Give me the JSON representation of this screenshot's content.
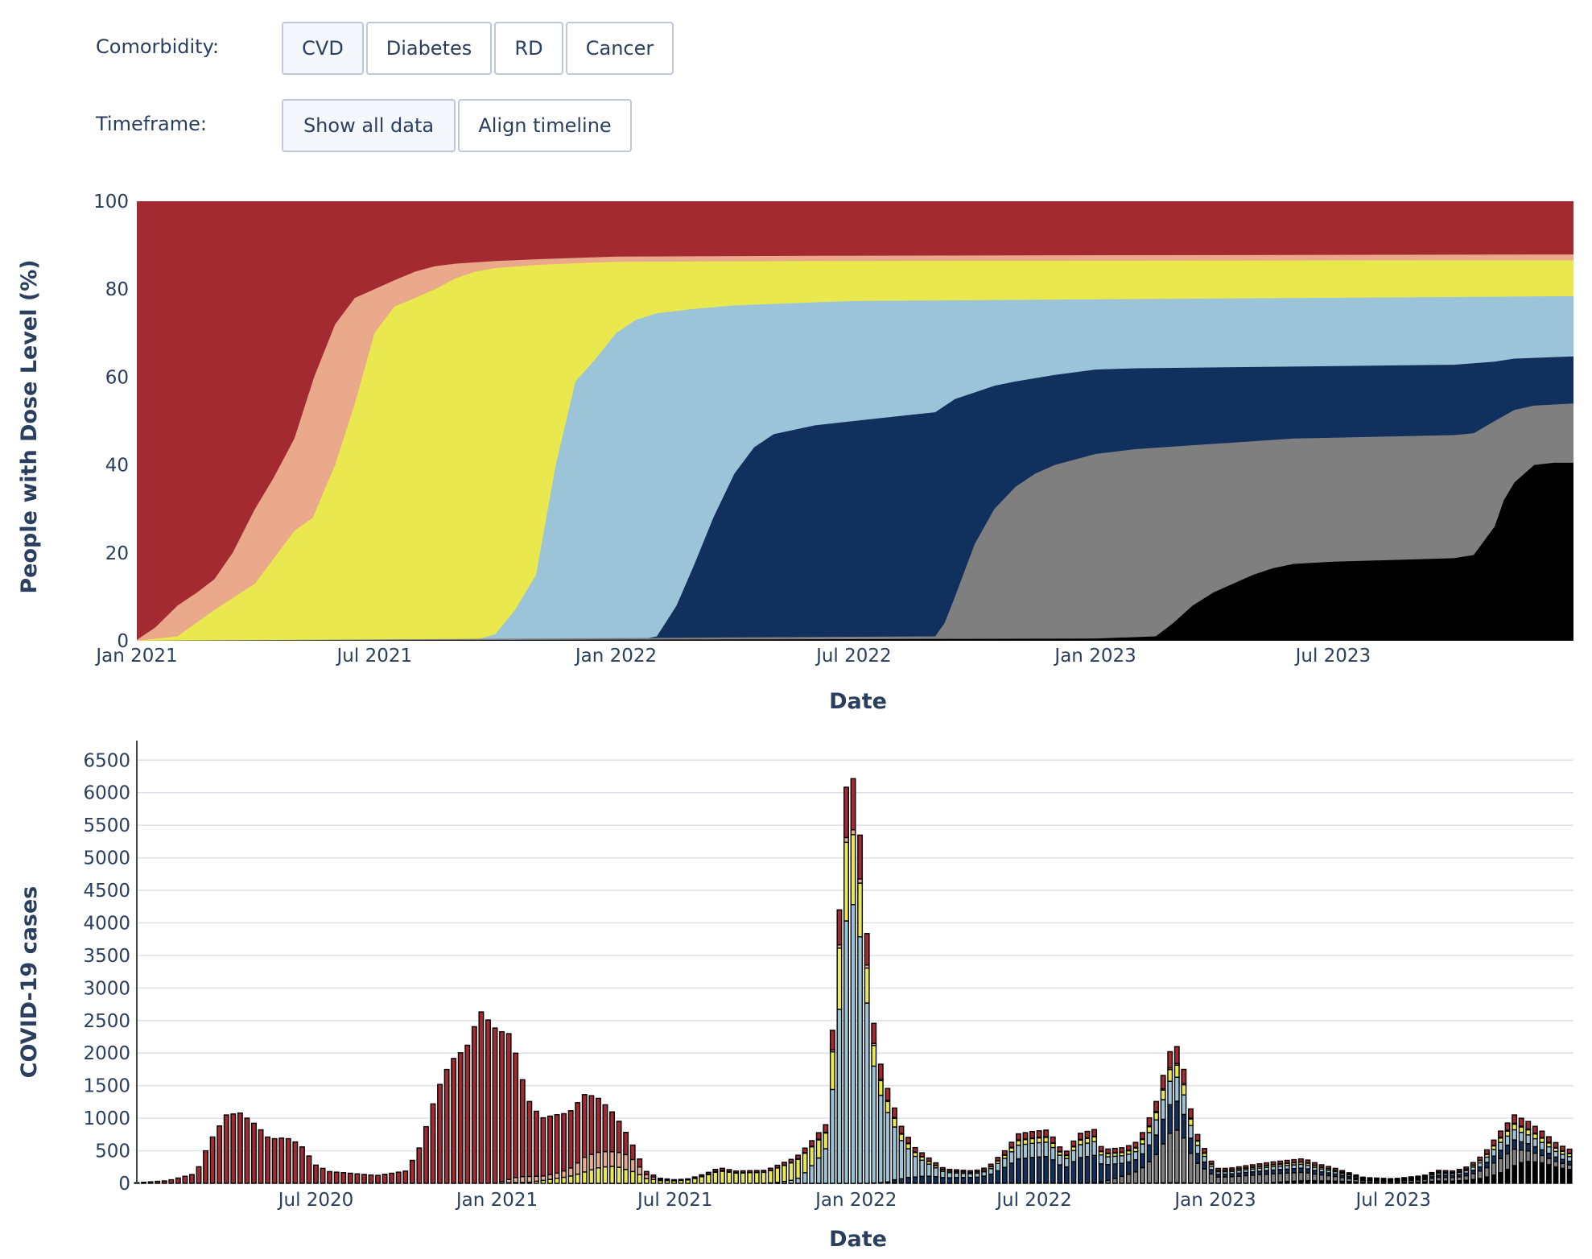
{
  "controls": {
    "comorbidity_label": "Comorbidity:",
    "comorbidity_buttons": [
      {
        "label": "CVD",
        "active": true
      },
      {
        "label": "Diabetes",
        "active": false
      },
      {
        "label": "RD",
        "active": false
      },
      {
        "label": "Cancer",
        "active": false
      }
    ],
    "timeframe_label": "Timeframe:",
    "timeframe_buttons": [
      {
        "label": "Show all data",
        "active": true
      },
      {
        "label": "Align timeline",
        "active": false
      }
    ]
  },
  "chart_data": [
    {
      "type": "area",
      "stacked": true,
      "xlabel": "Date",
      "ylabel": "People with Dose Level (%)",
      "x_range": [
        "2021-01-01",
        "2023-12-31"
      ],
      "ylim": [
        0,
        100
      ],
      "y_ticks": [
        0,
        20,
        40,
        60,
        80,
        100
      ],
      "x_ticks": [
        {
          "date": "2021-01-01",
          "label": "Jan 2021"
        },
        {
          "date": "2021-07-01",
          "label": "Jul 2021"
        },
        {
          "date": "2022-01-01",
          "label": "Jan 2022"
        },
        {
          "date": "2022-07-01",
          "label": "Jul 2022"
        },
        {
          "date": "2023-01-01",
          "label": "Jan 2023"
        },
        {
          "date": "2023-07-01",
          "label": "Jul 2023"
        }
      ],
      "grid": false,
      "boundaries": [
        {
          "color": "#a32a31",
          "points": [
            [
              "2021-01-01",
              100
            ],
            [
              "2023-12-31",
              100
            ]
          ]
        },
        {
          "color": "#eaa98b",
          "points": [
            [
              "2021-01-01",
              0.2
            ],
            [
              "2021-01-15",
              3
            ],
            [
              "2021-02-01",
              8
            ],
            [
              "2021-02-16",
              11
            ],
            [
              "2021-03-01",
              14
            ],
            [
              "2021-03-15",
              20
            ],
            [
              "2021-04-01",
              30
            ],
            [
              "2021-04-15",
              37
            ],
            [
              "2021-05-01",
              46
            ],
            [
              "2021-05-16",
              60
            ],
            [
              "2021-06-01",
              72
            ],
            [
              "2021-06-16",
              78
            ],
            [
              "2021-07-01",
              80
            ],
            [
              "2021-07-16",
              82
            ],
            [
              "2021-08-01",
              84
            ],
            [
              "2021-08-16",
              85.2
            ],
            [
              "2021-09-01",
              85.8
            ],
            [
              "2021-10-01",
              86.4
            ],
            [
              "2021-11-01",
              86.8
            ],
            [
              "2021-12-01",
              87.1
            ],
            [
              "2022-01-01",
              87.4
            ],
            [
              "2022-06-01",
              87.6
            ],
            [
              "2023-12-31",
              87.9
            ]
          ]
        },
        {
          "color": "#eae84f",
          "points": [
            [
              "2021-01-01",
              0
            ],
            [
              "2021-02-01",
              1
            ],
            [
              "2021-03-01",
              7
            ],
            [
              "2021-04-01",
              13
            ],
            [
              "2021-05-01",
              25
            ],
            [
              "2021-05-15",
              28
            ],
            [
              "2021-06-01",
              40
            ],
            [
              "2021-06-16",
              54
            ],
            [
              "2021-07-01",
              70
            ],
            [
              "2021-07-16",
              76
            ],
            [
              "2021-08-01",
              78
            ],
            [
              "2021-08-16",
              80
            ],
            [
              "2021-09-01",
              82.5
            ],
            [
              "2021-09-16",
              84
            ],
            [
              "2021-10-01",
              84.8
            ],
            [
              "2021-11-01",
              85.5
            ],
            [
              "2021-12-01",
              85.9
            ],
            [
              "2022-01-01",
              86.2
            ],
            [
              "2022-06-01",
              86.4
            ],
            [
              "2023-12-31",
              86.6
            ]
          ]
        },
        {
          "color": "#9cc4d9",
          "points": [
            [
              "2021-01-01",
              0
            ],
            [
              "2021-09-15",
              0
            ],
            [
              "2021-10-01",
              1.5
            ],
            [
              "2021-10-16",
              7
            ],
            [
              "2021-11-01",
              15
            ],
            [
              "2021-11-16",
              40
            ],
            [
              "2021-12-01",
              59
            ],
            [
              "2021-12-16",
              64
            ],
            [
              "2022-01-01",
              70
            ],
            [
              "2022-01-16",
              73
            ],
            [
              "2022-02-01",
              74.5
            ],
            [
              "2022-03-01",
              75.5
            ],
            [
              "2022-04-01",
              76.3
            ],
            [
              "2022-06-01",
              77
            ],
            [
              "2022-07-01",
              77.3
            ],
            [
              "2023-12-31",
              78.4
            ]
          ]
        },
        {
          "color": "#12305e",
          "points": [
            [
              "2021-01-01",
              0
            ],
            [
              "2022-01-15",
              0
            ],
            [
              "2022-02-01",
              1
            ],
            [
              "2022-02-16",
              8
            ],
            [
              "2022-03-01",
              17
            ],
            [
              "2022-03-16",
              28
            ],
            [
              "2022-04-01",
              38
            ],
            [
              "2022-04-16",
              44
            ],
            [
              "2022-05-01",
              47
            ],
            [
              "2022-06-01",
              49
            ],
            [
              "2022-07-01",
              50
            ],
            [
              "2022-08-01",
              51
            ],
            [
              "2022-09-01",
              52
            ],
            [
              "2022-09-16",
              55
            ],
            [
              "2022-10-01",
              56.5
            ],
            [
              "2022-10-16",
              58
            ],
            [
              "2022-11-01",
              59
            ],
            [
              "2022-12-01",
              60.5
            ],
            [
              "2023-01-01",
              61.7
            ],
            [
              "2023-02-01",
              62
            ],
            [
              "2023-10-01",
              62.8
            ],
            [
              "2023-11-01",
              63.5
            ],
            [
              "2023-11-16",
              64.2
            ],
            [
              "2023-12-31",
              64.7
            ]
          ]
        },
        {
          "color": "#7f7f7f",
          "points": [
            [
              "2021-01-01",
              0
            ],
            [
              "2022-09-01",
              1
            ],
            [
              "2022-09-08",
              4
            ],
            [
              "2022-09-16",
              10
            ],
            [
              "2022-10-01",
              22
            ],
            [
              "2022-10-16",
              30
            ],
            [
              "2022-11-01",
              35
            ],
            [
              "2022-11-16",
              38
            ],
            [
              "2022-12-01",
              40
            ],
            [
              "2023-01-01",
              42.5
            ],
            [
              "2023-02-01",
              43.6
            ],
            [
              "2023-04-01",
              44.8
            ],
            [
              "2023-06-01",
              46
            ],
            [
              "2023-10-01",
              46.8
            ],
            [
              "2023-10-16",
              47.2
            ],
            [
              "2023-11-01",
              50
            ],
            [
              "2023-11-16",
              52.5
            ],
            [
              "2023-12-01",
              53.5
            ],
            [
              "2023-12-31",
              54
            ]
          ]
        },
        {
          "color": "#000000",
          "points": [
            [
              "2021-01-01",
              0
            ],
            [
              "2023-01-01",
              0.5
            ],
            [
              "2023-02-16",
              1
            ],
            [
              "2023-03-01",
              4
            ],
            [
              "2023-03-16",
              8
            ],
            [
              "2023-04-01",
              11
            ],
            [
              "2023-04-16",
              13
            ],
            [
              "2023-05-01",
              15
            ],
            [
              "2023-05-16",
              16.5
            ],
            [
              "2023-06-01",
              17.5
            ],
            [
              "2023-07-01",
              18
            ],
            [
              "2023-10-01",
              18.8
            ],
            [
              "2023-10-16",
              19.5
            ],
            [
              "2023-11-01",
              26
            ],
            [
              "2023-11-08",
              32
            ],
            [
              "2023-11-16",
              36
            ],
            [
              "2023-12-01",
              40
            ],
            [
              "2023-12-16",
              40.5
            ],
            [
              "2023-12-31",
              40.5
            ]
          ]
        }
      ]
    },
    {
      "type": "bar",
      "stacked": true,
      "xlabel": "Date",
      "ylabel": "COVID-19 cases",
      "x_range": [
        "2020-01-01",
        "2023-12-31"
      ],
      "ylim": [
        0,
        6800
      ],
      "y_ticks": [
        0,
        500,
        1000,
        1500,
        2000,
        2500,
        3000,
        3500,
        4000,
        4500,
        5000,
        5500,
        6000,
        6500
      ],
      "x_ticks": [
        {
          "date": "2020-07-01",
          "label": "Jul 2020"
        },
        {
          "date": "2021-01-01",
          "label": "Jan 2021"
        },
        {
          "date": "2021-07-01",
          "label": "Jul 2021"
        },
        {
          "date": "2022-01-01",
          "label": "Jan 2022"
        },
        {
          "date": "2022-07-01",
          "label": "Jul 2022"
        },
        {
          "date": "2023-01-01",
          "label": "Jan 2023"
        },
        {
          "date": "2023-07-01",
          "label": "Jul 2023"
        }
      ],
      "grid": true,
      "bar_width_days": 4.5,
      "bar_edge_color": "#000000",
      "series_colors": [
        "#000000",
        "#7f7f7f",
        "#12305e",
        "#9cc4d9",
        "#eae84f",
        "#eaa98b",
        "#a32a31"
      ],
      "anchors_note_free": true,
      "totals": [
        [
          "2020-01-01",
          10
        ],
        [
          "2020-02-01",
          40
        ],
        [
          "2020-03-01",
          150
        ],
        [
          "2020-03-15",
          640
        ],
        [
          "2020-04-01",
          1050
        ],
        [
          "2020-04-15",
          1080
        ],
        [
          "2020-05-01",
          900
        ],
        [
          "2020-05-15",
          680
        ],
        [
          "2020-06-01",
          700
        ],
        [
          "2020-06-15",
          600
        ],
        [
          "2020-07-01",
          280
        ],
        [
          "2020-07-15",
          180
        ],
        [
          "2020-08-01",
          160
        ],
        [
          "2020-09-01",
          120
        ],
        [
          "2020-10-01",
          190
        ],
        [
          "2020-10-15",
          570
        ],
        [
          "2020-11-01",
          1420
        ],
        [
          "2020-11-15",
          1880
        ],
        [
          "2020-12-01",
          2080
        ],
        [
          "2020-12-15",
          2650
        ],
        [
          "2021-01-01",
          2350
        ],
        [
          "2021-01-15",
          2290
        ],
        [
          "2021-02-01",
          1300
        ],
        [
          "2021-02-15",
          1000
        ],
        [
          "2021-03-01",
          1050
        ],
        [
          "2021-03-15",
          1080
        ],
        [
          "2021-04-01",
          1380
        ],
        [
          "2021-04-15",
          1300
        ],
        [
          "2021-05-01",
          1050
        ],
        [
          "2021-05-15",
          710
        ],
        [
          "2021-06-01",
          190
        ],
        [
          "2021-06-15",
          80
        ],
        [
          "2021-07-01",
          55
        ],
        [
          "2021-07-15",
          70
        ],
        [
          "2021-08-01",
          150
        ],
        [
          "2021-08-15",
          240
        ],
        [
          "2021-09-01",
          190
        ],
        [
          "2021-10-01",
          200
        ],
        [
          "2021-11-01",
          400
        ],
        [
          "2021-11-15",
          620
        ],
        [
          "2021-12-01",
          900
        ],
        [
          "2021-12-08",
          2350
        ],
        [
          "2021-12-15",
          4200
        ],
        [
          "2021-12-20",
          5850
        ],
        [
          "2021-12-26",
          6550
        ],
        [
          "2022-01-01",
          5880
        ],
        [
          "2022-01-08",
          4950
        ],
        [
          "2022-01-15",
          3000
        ],
        [
          "2022-01-22",
          2050
        ],
        [
          "2022-02-01",
          1500
        ],
        [
          "2022-02-15",
          900
        ],
        [
          "2022-03-01",
          560
        ],
        [
          "2022-03-15",
          400
        ],
        [
          "2022-04-01",
          220
        ],
        [
          "2022-05-01",
          190
        ],
        [
          "2022-05-15",
          250
        ],
        [
          "2022-06-01",
          500
        ],
        [
          "2022-06-15",
          760
        ],
        [
          "2022-07-01",
          800
        ],
        [
          "2022-07-15",
          820
        ],
        [
          "2022-08-01",
          450
        ],
        [
          "2022-08-15",
          760
        ],
        [
          "2022-09-01",
          830
        ],
        [
          "2022-09-08",
          520
        ],
        [
          "2022-10-01",
          550
        ],
        [
          "2022-10-15",
          650
        ],
        [
          "2022-11-01",
          1200
        ],
        [
          "2022-11-15",
          2000
        ],
        [
          "2022-11-22",
          2150
        ],
        [
          "2022-12-01",
          1700
        ],
        [
          "2022-12-08",
          1050
        ],
        [
          "2022-12-15",
          700
        ],
        [
          "2023-01-01",
          230
        ],
        [
          "2023-01-15",
          230
        ],
        [
          "2023-02-01",
          270
        ],
        [
          "2023-03-01",
          330
        ],
        [
          "2023-04-01",
          380
        ],
        [
          "2023-04-15",
          300
        ],
        [
          "2023-05-01",
          240
        ],
        [
          "2023-06-01",
          90
        ],
        [
          "2023-07-01",
          70
        ],
        [
          "2023-08-01",
          120
        ],
        [
          "2023-08-15",
          200
        ],
        [
          "2023-09-01",
          190
        ],
        [
          "2023-09-15",
          260
        ],
        [
          "2023-10-01",
          450
        ],
        [
          "2023-10-15",
          750
        ],
        [
          "2023-11-01",
          1050
        ],
        [
          "2023-11-15",
          950
        ],
        [
          "2023-12-01",
          780
        ],
        [
          "2023-12-15",
          600
        ],
        [
          "2023-12-31",
          500
        ]
      ]
    }
  ]
}
